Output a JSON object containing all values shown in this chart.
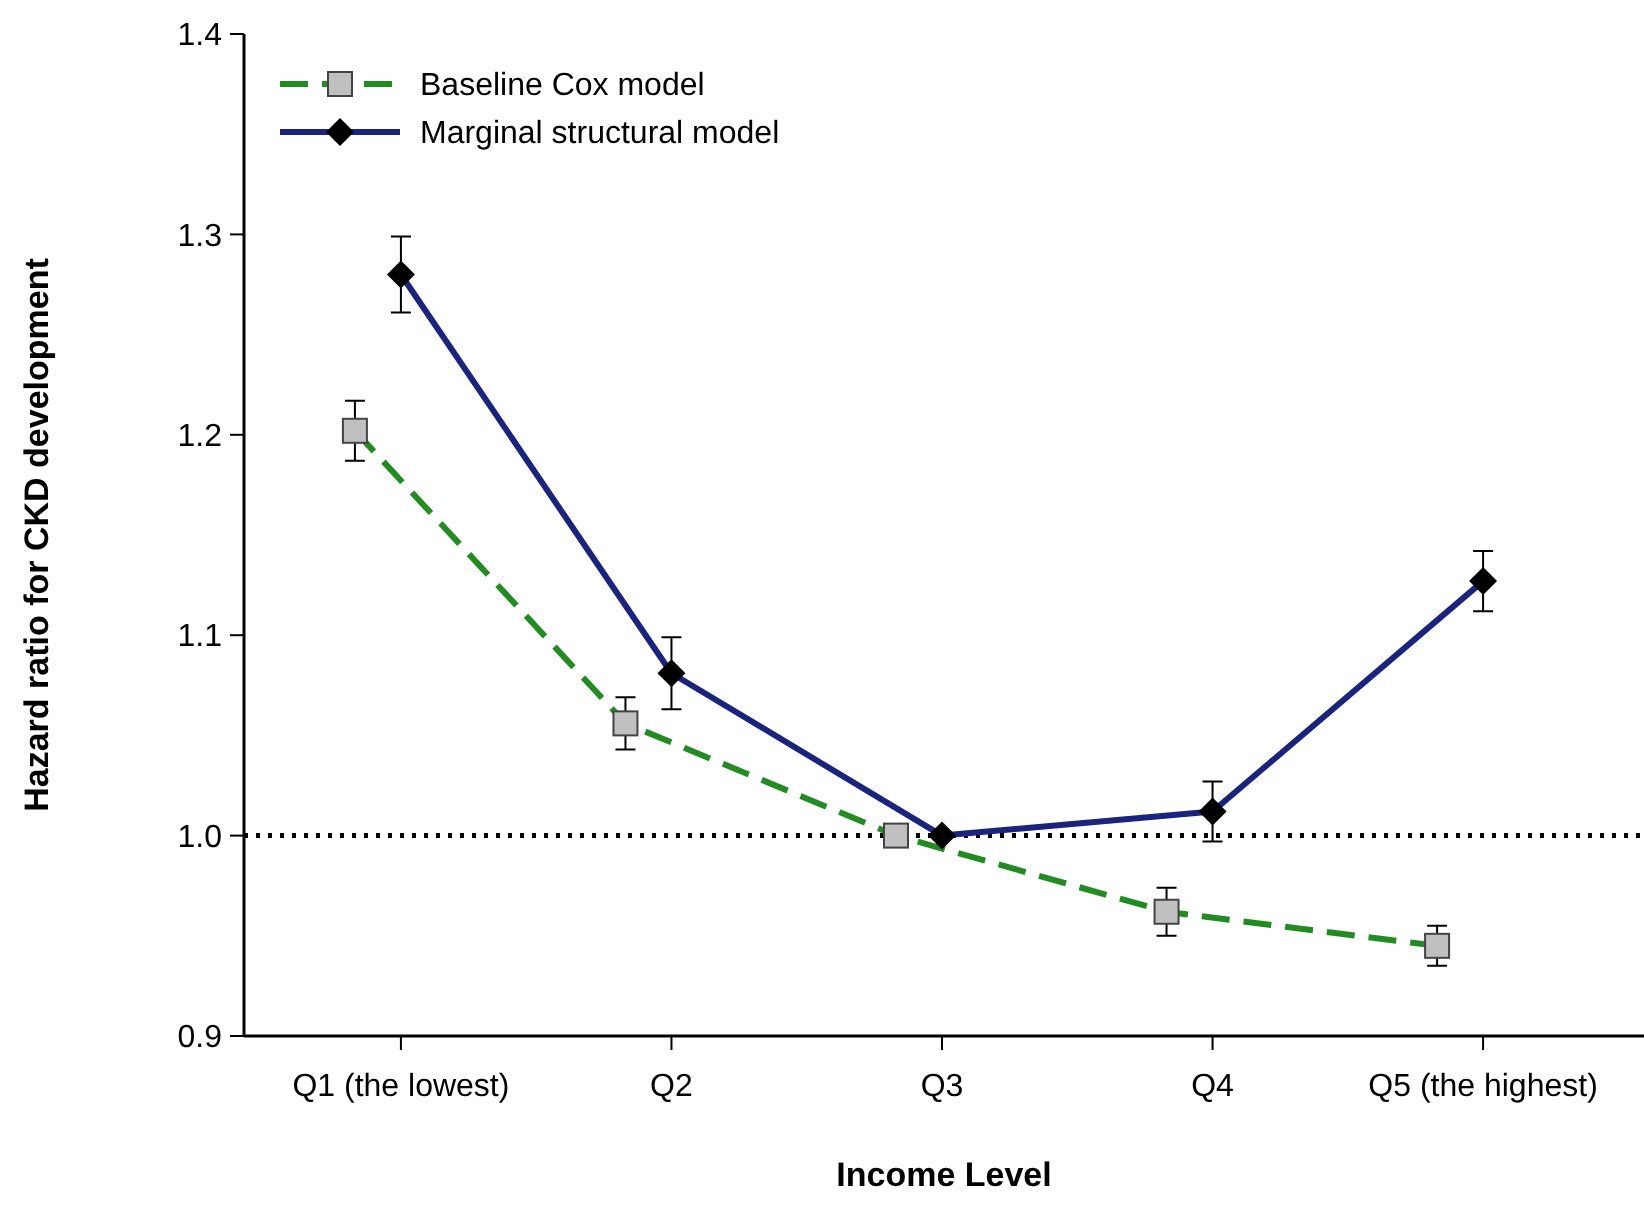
{
  "chart_data": {
    "type": "line",
    "xlabel": "Income Level",
    "ylabel": "Hazard ratio for CKD development",
    "categories": [
      "Q1 (the lowest)",
      "Q2",
      "Q3",
      "Q4",
      "Q5 (the highest)"
    ],
    "ylim": [
      0.9,
      1.4
    ],
    "yticks": [
      {
        "value": 0.9,
        "label": "0.9"
      },
      {
        "value": 1,
        "label": "1.0"
      },
      {
        "value": 1.1,
        "label": "1.1"
      },
      {
        "value": 1.2,
        "label": "1.2"
      },
      {
        "value": 1.3,
        "label": "1.3"
      },
      {
        "value": 1.4,
        "label": "1.4"
      }
    ],
    "series": [
      {
        "name": "Baseline Cox model",
        "color": "#228b22",
        "marker": "square",
        "line_style": "dashed",
        "values": [
          1.202,
          1.056,
          1.0,
          0.962,
          0.945
        ],
        "errors": [
          0.015,
          0.013,
          null,
          0.012,
          0.01
        ]
      },
      {
        "name": "Marginal structural model",
        "color": "#1a237e",
        "marker": "diamond",
        "line_style": "solid",
        "values": [
          1.28,
          1.081,
          1.0,
          1.012,
          1.127
        ],
        "errors": [
          0.019,
          0.018,
          null,
          0.015,
          0.015
        ]
      }
    ],
    "ref_lines": [
      {
        "axis": "y",
        "value": 1.0,
        "color": "#000000",
        "line_style": "dotted"
      }
    ],
    "legend": "top left",
    "grid": false
  }
}
